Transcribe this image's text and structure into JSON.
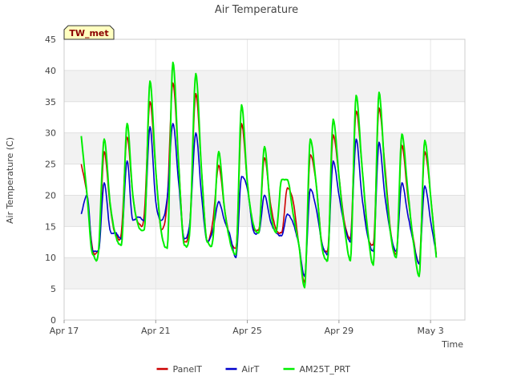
{
  "chart_data": {
    "type": "line",
    "title": "Air Temperature",
    "xlabel": "Time",
    "ylabel": "Air Temperature (C)",
    "badge": "TW_met",
    "ylim": [
      0,
      45
    ],
    "yticks": [
      0,
      5,
      10,
      15,
      20,
      25,
      30,
      35,
      40,
      45
    ],
    "xlim": [
      "Apr 17",
      "May 4 12:00"
    ],
    "xticks": [
      "Apr 17",
      "Apr 21",
      "Apr 25",
      "Apr 29",
      "May 3"
    ],
    "grid": "horizontal alternating bands",
    "legend": "bottom-center",
    "series": [
      {
        "name": "PanelT",
        "color": "#cc0000",
        "points": [
          [
            "Apr 17 18:00",
            25.0
          ],
          [
            "Apr 18 00:00",
            20.0
          ],
          [
            "Apr 18 06:00",
            11.2
          ],
          [
            "Apr 18 12:00",
            11.1
          ],
          [
            "Apr 18 18:00",
            27.0
          ],
          [
            "Apr 19 00:00",
            18.5
          ],
          [
            "Apr 19 06:00",
            13.8
          ],
          [
            "Apr 19 12:00",
            14.0
          ],
          [
            "Apr 19 18:00",
            29.3
          ],
          [
            "Apr 20 00:00",
            20.0
          ],
          [
            "Apr 20 06:00",
            15.5
          ],
          [
            "Apr 20 12:00",
            17.0
          ],
          [
            "Apr 20 18:00",
            35.0
          ],
          [
            "Apr 21 00:00",
            24.0
          ],
          [
            "Apr 21 06:00",
            14.5
          ],
          [
            "Apr 21 12:00",
            19.0
          ],
          [
            "Apr 21 18:00",
            38.0
          ],
          [
            "Apr 22 00:00",
            25.0
          ],
          [
            "Apr 22 06:00",
            12.5
          ],
          [
            "Apr 22 12:00",
            16.0
          ],
          [
            "Apr 22 18:00",
            36.3
          ],
          [
            "Apr 23 00:00",
            24.0
          ],
          [
            "Apr 23 06:00",
            12.5
          ],
          [
            "Apr 23 12:00",
            16.0
          ],
          [
            "Apr 23 18:00",
            24.8
          ],
          [
            "Apr 24 00:00",
            18.0
          ],
          [
            "Apr 24 06:00",
            13.0
          ],
          [
            "Apr 24 12:00",
            11.5
          ],
          [
            "Apr 24 18:00",
            31.5
          ],
          [
            "Apr 25 00:00",
            22.0
          ],
          [
            "Apr 25 06:00",
            15.0
          ],
          [
            "Apr 25 12:00",
            14.5
          ],
          [
            "Apr 25 18:00",
            26.0
          ],
          [
            "Apr 26 00:00",
            19.0
          ],
          [
            "Apr 26 06:00",
            14.5
          ],
          [
            "Apr 26 12:00",
            14.0
          ],
          [
            "Apr 26 18:00",
            21.2
          ],
          [
            "Apr 27 00:00",
            19.0
          ],
          [
            "Apr 27 06:00",
            12.0
          ],
          [
            "Apr 27 12:00",
            6.0
          ],
          [
            "Apr 27 18:00",
            26.5
          ],
          [
            "Apr 28 00:00",
            22.0
          ],
          [
            "Apr 28 06:00",
            12.5
          ],
          [
            "Apr 28 12:00",
            11.0
          ],
          [
            "Apr 28 18:00",
            29.7
          ],
          [
            "Apr 29 00:00",
            23.0
          ],
          [
            "Apr 29 06:00",
            15.5
          ],
          [
            "Apr 29 12:00",
            13.0
          ],
          [
            "Apr 29 18:00",
            33.5
          ],
          [
            "Apr 30 00:00",
            25.0
          ],
          [
            "Apr 30 06:00",
            14.0
          ],
          [
            "Apr 30 12:00",
            12.0
          ],
          [
            "Apr 30 18:00",
            34.0
          ],
          [
            "May 1 00:00",
            25.0
          ],
          [
            "May 1 06:00",
            14.5
          ],
          [
            "May 1 12:00",
            10.5
          ],
          [
            "May 1 18:00",
            28.0
          ],
          [
            "May 2 00:00",
            20.0
          ],
          [
            "May 2 06:00",
            13.0
          ],
          [
            "May 2 12:00",
            9.0
          ],
          [
            "May 2 18:00",
            27.0
          ],
          [
            "May 3 00:00",
            20.0
          ],
          [
            "May 3 06:00",
            10.5
          ]
        ]
      },
      {
        "name": "AirT",
        "color": "#0000cc",
        "points": [
          [
            "Apr 17 18:00",
            17.0
          ],
          [
            "Apr 18 00:00",
            20.0
          ],
          [
            "Apr 18 06:00",
            11.0
          ],
          [
            "Apr 18 12:00",
            11.0
          ],
          [
            "Apr 18 18:00",
            22.0
          ],
          [
            "Apr 19 00:00",
            14.5
          ],
          [
            "Apr 19 06:00",
            14.0
          ],
          [
            "Apr 19 12:00",
            13.0
          ],
          [
            "Apr 19 18:00",
            25.5
          ],
          [
            "Apr 20 00:00",
            16.0
          ],
          [
            "Apr 20 06:00",
            16.5
          ],
          [
            "Apr 20 12:00",
            16.0
          ],
          [
            "Apr 20 18:00",
            31.0
          ],
          [
            "Apr 21 00:00",
            19.0
          ],
          [
            "Apr 21 06:00",
            16.0
          ],
          [
            "Apr 21 12:00",
            19.5
          ],
          [
            "Apr 21 18:00",
            31.5
          ],
          [
            "Apr 22 00:00",
            22.0
          ],
          [
            "Apr 22 06:00",
            13.0
          ],
          [
            "Apr 22 12:00",
            16.0
          ],
          [
            "Apr 22 18:00",
            30.0
          ],
          [
            "Apr 23 00:00",
            20.0
          ],
          [
            "Apr 23 06:00",
            12.5
          ],
          [
            "Apr 23 12:00",
            14.5
          ],
          [
            "Apr 23 18:00",
            19.0
          ],
          [
            "Apr 24 00:00",
            16.0
          ],
          [
            "Apr 24 06:00",
            13.5
          ],
          [
            "Apr 24 12:00",
            10.0
          ],
          [
            "Apr 24 18:00",
            23.0
          ],
          [
            "Apr 25 00:00",
            21.0
          ],
          [
            "Apr 25 06:00",
            14.5
          ],
          [
            "Apr 25 12:00",
            14.0
          ],
          [
            "Apr 25 18:00",
            20.0
          ],
          [
            "Apr 26 00:00",
            16.0
          ],
          [
            "Apr 26 06:00",
            14.0
          ],
          [
            "Apr 26 12:00",
            13.5
          ],
          [
            "Apr 26 18:00",
            17.0
          ],
          [
            "Apr 27 00:00",
            15.5
          ],
          [
            "Apr 27 06:00",
            12.0
          ],
          [
            "Apr 27 12:00",
            7.0
          ],
          [
            "Apr 27 18:00",
            21.0
          ],
          [
            "Apr 28 00:00",
            18.0
          ],
          [
            "Apr 28 06:00",
            12.5
          ],
          [
            "Apr 28 12:00",
            10.5
          ],
          [
            "Apr 28 18:00",
            25.5
          ],
          [
            "Apr 29 00:00",
            20.0
          ],
          [
            "Apr 29 06:00",
            15.0
          ],
          [
            "Apr 29 12:00",
            12.5
          ],
          [
            "Apr 29 18:00",
            29.0
          ],
          [
            "Apr 30 00:00",
            20.0
          ],
          [
            "Apr 30 06:00",
            13.5
          ],
          [
            "Apr 30 12:00",
            11.0
          ],
          [
            "Apr 30 18:00",
            28.5
          ],
          [
            "May 1 00:00",
            20.0
          ],
          [
            "May 1 06:00",
            14.0
          ],
          [
            "May 1 12:00",
            11.0
          ],
          [
            "May 1 18:00",
            22.0
          ],
          [
            "May 2 00:00",
            17.0
          ],
          [
            "May 2 06:00",
            12.5
          ],
          [
            "May 2 12:00",
            9.0
          ],
          [
            "May 2 18:00",
            21.5
          ],
          [
            "May 3 00:00",
            16.0
          ],
          [
            "May 3 06:00",
            10.5
          ]
        ]
      },
      {
        "name": "AM25T_PRT",
        "color": "#00ee00",
        "points": [
          [
            "Apr 17 18:00",
            29.5
          ],
          [
            "Apr 18 00:00",
            20.0
          ],
          [
            "Apr 18 06:00",
            10.5
          ],
          [
            "Apr 18 12:00",
            11.0
          ],
          [
            "Apr 18 18:00",
            29.0
          ],
          [
            "Apr 19 00:00",
            19.0
          ],
          [
            "Apr 19 06:00",
            13.5
          ],
          [
            "Apr 19 12:00",
            12.0
          ],
          [
            "Apr 19 18:00",
            31.5
          ],
          [
            "Apr 20 00:00",
            20.0
          ],
          [
            "Apr 20 06:00",
            15.0
          ],
          [
            "Apr 20 12:00",
            14.5
          ],
          [
            "Apr 20 18:00",
            38.3
          ],
          [
            "Apr 21 00:00",
            24.0
          ],
          [
            "Apr 21 06:00",
            14.0
          ],
          [
            "Apr 21 12:00",
            11.5
          ],
          [
            "Apr 21 18:00",
            41.3
          ],
          [
            "Apr 22 00:00",
            25.0
          ],
          [
            "Apr 22 06:00",
            12.0
          ],
          [
            "Apr 22 12:00",
            15.0
          ],
          [
            "Apr 22 18:00",
            39.5
          ],
          [
            "Apr 23 00:00",
            24.0
          ],
          [
            "Apr 23 06:00",
            12.5
          ],
          [
            "Apr 23 12:00",
            13.0
          ],
          [
            "Apr 23 18:00",
            27.0
          ],
          [
            "Apr 24 00:00",
            18.0
          ],
          [
            "Apr 24 06:00",
            12.5
          ],
          [
            "Apr 24 12:00",
            10.5
          ],
          [
            "Apr 24 18:00",
            34.5
          ],
          [
            "Apr 25 00:00",
            22.0
          ],
          [
            "Apr 25 06:00",
            15.5
          ],
          [
            "Apr 25 12:00",
            14.0
          ],
          [
            "Apr 25 18:00",
            27.8
          ],
          [
            "Apr 26 00:00",
            18.0
          ],
          [
            "Apr 26 06:00",
            14.0
          ],
          [
            "Apr 26 12:00",
            22.5
          ],
          [
            "Apr 26 18:00",
            22.5
          ],
          [
            "Apr 27 00:00",
            17.0
          ],
          [
            "Apr 27 06:00",
            12.0
          ],
          [
            "Apr 27 12:00",
            5.2
          ],
          [
            "Apr 27 18:00",
            29.0
          ],
          [
            "Apr 28 00:00",
            22.0
          ],
          [
            "Apr 28 06:00",
            12.0
          ],
          [
            "Apr 28 12:00",
            9.5
          ],
          [
            "Apr 28 18:00",
            32.2
          ],
          [
            "Apr 29 00:00",
            23.0
          ],
          [
            "Apr 29 06:00",
            14.5
          ],
          [
            "Apr 29 12:00",
            9.5
          ],
          [
            "Apr 29 18:00",
            36.0
          ],
          [
            "Apr 30 00:00",
            25.0
          ],
          [
            "Apr 30 06:00",
            14.5
          ],
          [
            "Apr 30 12:00",
            8.8
          ],
          [
            "Apr 30 18:00",
            36.5
          ],
          [
            "May 1 00:00",
            24.0
          ],
          [
            "May 1 06:00",
            14.0
          ],
          [
            "May 1 12:00",
            10.0
          ],
          [
            "May 1 18:00",
            29.8
          ],
          [
            "May 2 00:00",
            21.0
          ],
          [
            "May 2 06:00",
            12.5
          ],
          [
            "May 2 12:00",
            7.0
          ],
          [
            "May 2 18:00",
            28.8
          ],
          [
            "May 3 00:00",
            20.0
          ],
          [
            "May 3 06:00",
            10.0
          ]
        ]
      }
    ]
  }
}
